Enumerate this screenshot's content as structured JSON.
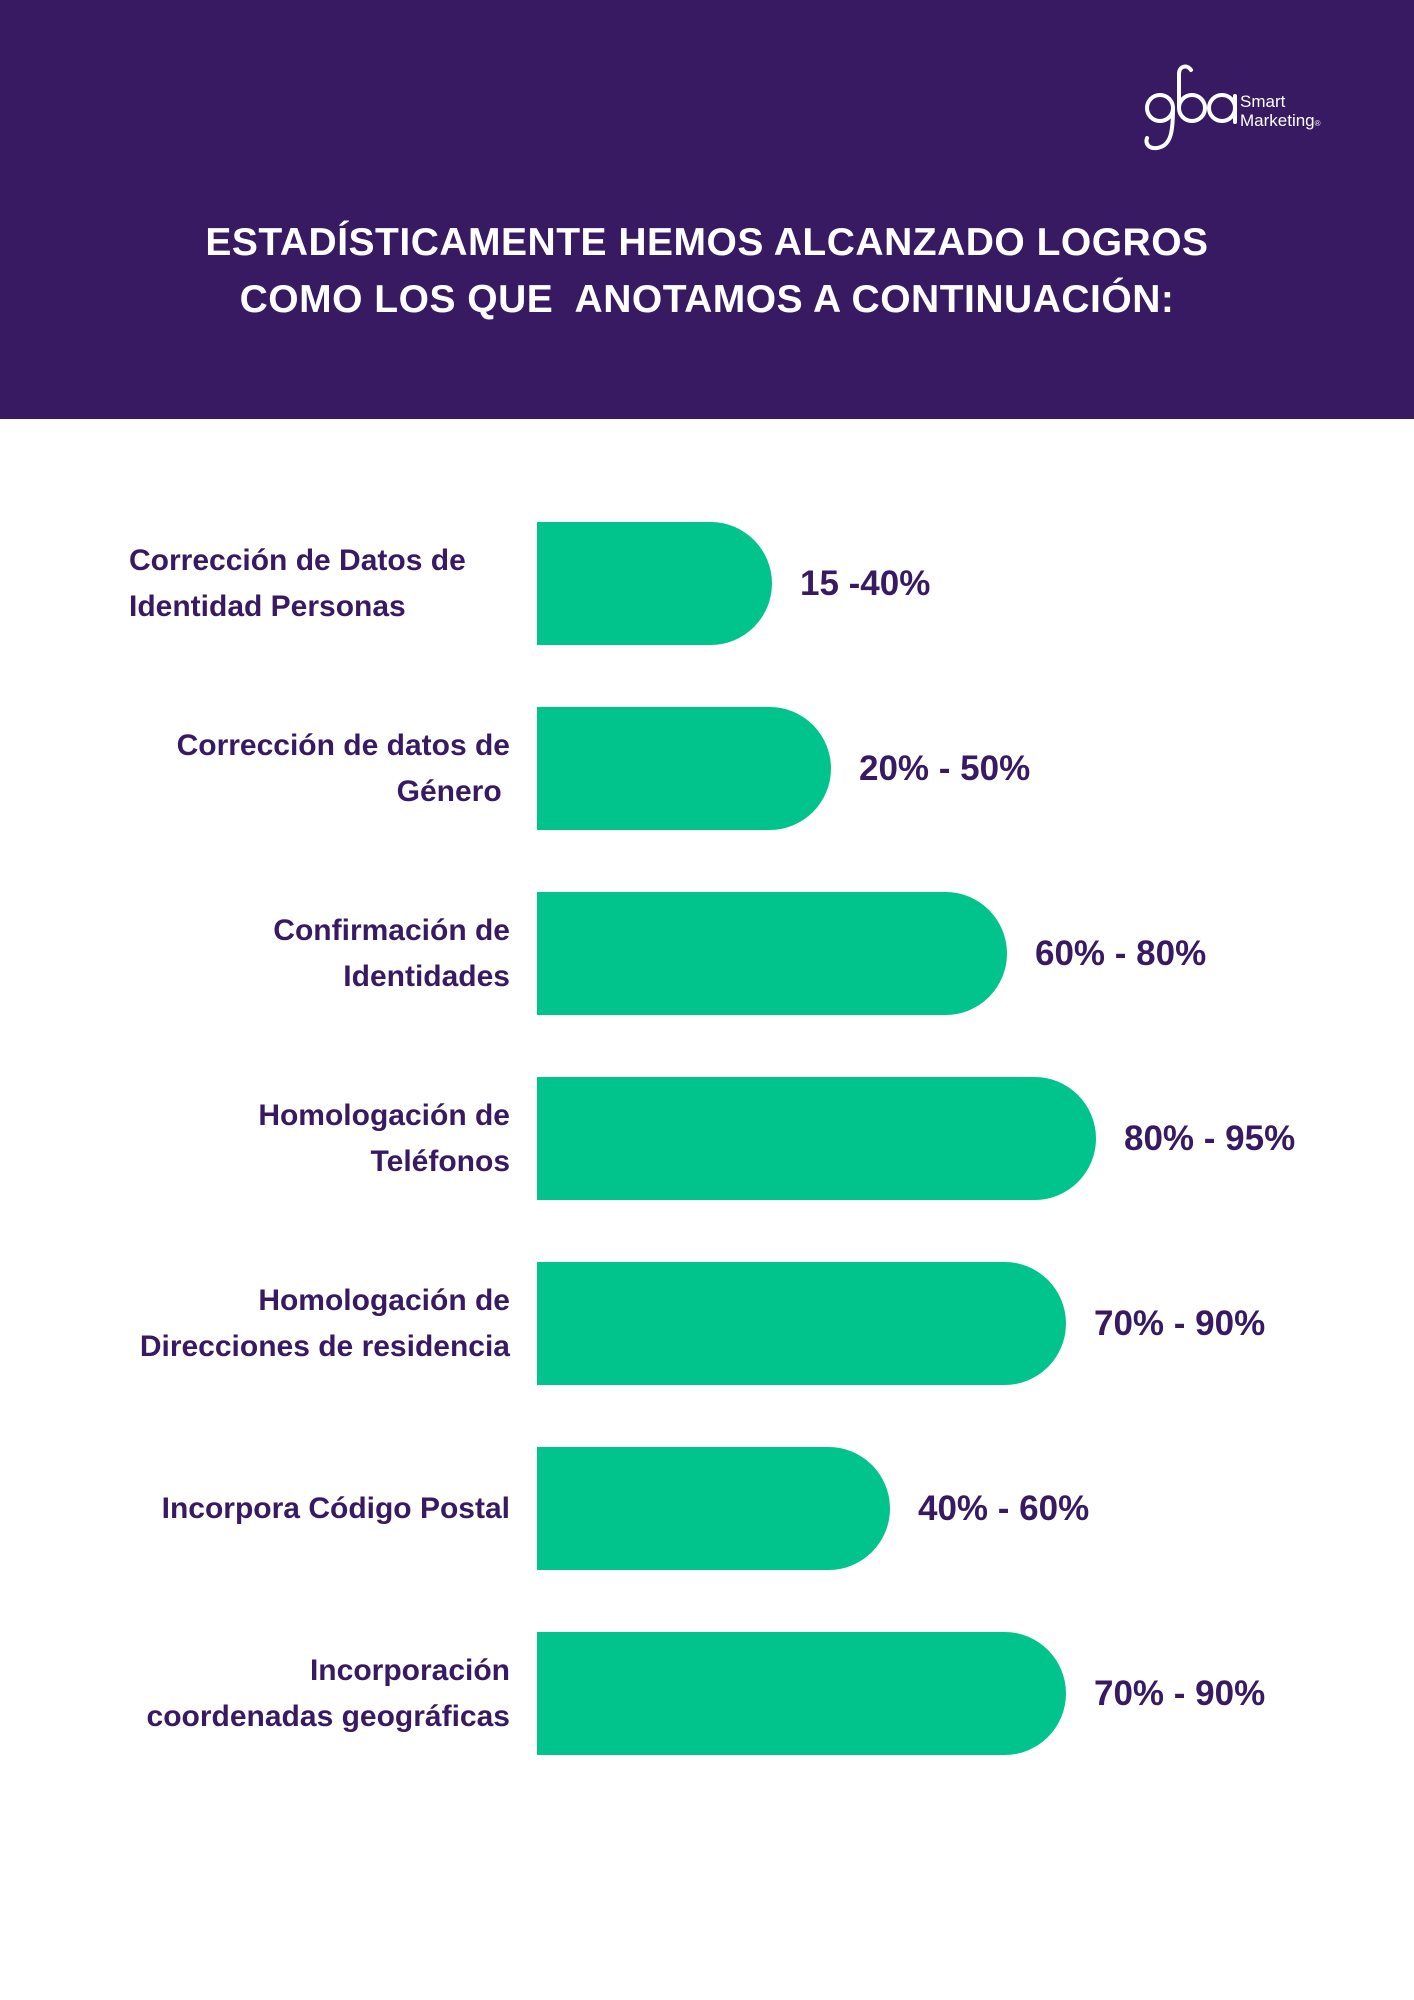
{
  "header": {
    "background": "#381a63",
    "logo": {
      "mark": "gba",
      "line1": "Smart",
      "line2": "Marketing",
      "reg": "®"
    },
    "title_lines": [
      "ESTADÍSTICAMENTE HEMOS ALCANZADO LOGROS",
      "COMO LOS QUE  ANOTAMOS A CONTINUACIÓN:"
    ]
  },
  "colors": {
    "bar": "#00c48c",
    "text": "#381a63",
    "title": "#ffffff"
  },
  "chart_data": {
    "type": "bar",
    "orientation": "horizontal",
    "categories": [
      [
        "Corrección de Datos de",
        "Identidad Personas"
      ],
      [
        "Corrección de datos de",
        "Género "
      ],
      [
        "Confirmación de",
        "Identidades"
      ],
      [
        "Homologación de",
        "Teléfonos"
      ],
      [
        "Homologación de",
        "Direcciones de residencia"
      ],
      [
        "Incorpora Código Postal"
      ],
      [
        "Incorporación",
        "coordenadas geográficas"
      ]
    ],
    "category_align": [
      "left",
      "right",
      "right",
      "right",
      "right",
      "right",
      "right"
    ],
    "ranges": [
      [
        15,
        40
      ],
      [
        20,
        50
      ],
      [
        60,
        80
      ],
      [
        80,
        95
      ],
      [
        70,
        90
      ],
      [
        40,
        60
      ],
      [
        70,
        90
      ]
    ],
    "value_labels": [
      "15 -40%",
      "20% - 50%",
      "60% - 80%",
      "80% - 95%",
      "70% - 90%",
      "40% - 60%",
      "70% - 90%"
    ],
    "title": "",
    "xlabel": "",
    "ylabel": "",
    "grid": false,
    "legend": "none"
  }
}
